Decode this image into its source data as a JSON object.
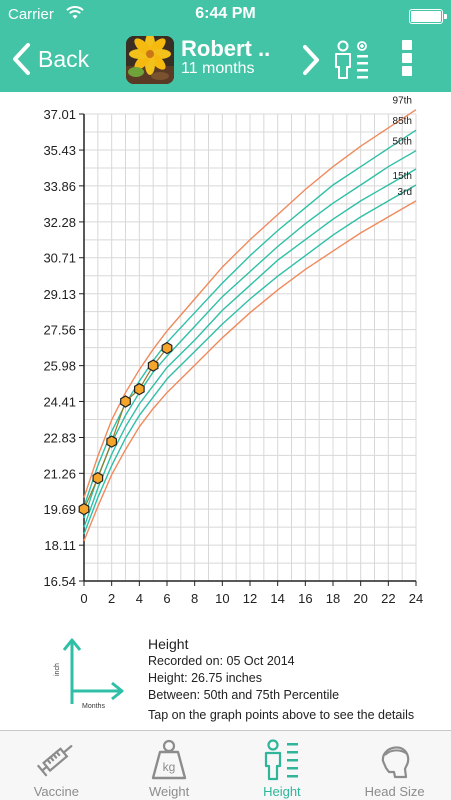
{
  "status": {
    "carrier": "Carrier",
    "time": "6:44 PM"
  },
  "nav": {
    "back_label": "Back",
    "patient_name": "Robert ..",
    "patient_age": "11 months"
  },
  "chart_data": {
    "type": "line",
    "x_ticks": [
      0,
      2,
      4,
      6,
      8,
      10,
      12,
      14,
      16,
      18,
      20,
      22,
      24
    ],
    "y_ticks": [
      "16.54",
      "18.11",
      "19.69",
      "21.26",
      "22.83",
      "24.41",
      "25.98",
      "27.56",
      "29.13",
      "30.71",
      "32.28",
      "33.86",
      "35.43",
      "37.01"
    ],
    "xlim": [
      0,
      24
    ],
    "ylim": [
      16.54,
      37.01
    ],
    "grid": true,
    "series": [
      {
        "name": "97th",
        "color": "#f08a5d",
        "x": [
          0,
          1,
          2,
          3,
          4,
          5,
          6,
          8,
          10,
          12,
          14,
          16,
          18,
          20,
          22,
          24
        ],
        "y": [
          20.2,
          22.0,
          23.6,
          24.8,
          25.8,
          26.7,
          27.5,
          28.9,
          30.3,
          31.5,
          32.6,
          33.7,
          34.7,
          35.6,
          36.4,
          37.2
        ]
      },
      {
        "name": "85th",
        "color": "#2fbfa6",
        "x": [
          0,
          1,
          2,
          3,
          4,
          5,
          6,
          8,
          10,
          12,
          14,
          16,
          18,
          20,
          22,
          24
        ],
        "y": [
          19.8,
          21.6,
          23.1,
          24.3,
          25.3,
          26.2,
          27.0,
          28.3,
          29.6,
          30.8,
          31.9,
          32.9,
          33.9,
          34.7,
          35.5,
          36.3
        ]
      },
      {
        "name": "50th",
        "color": "#2fbfa6",
        "x": [
          0,
          1,
          2,
          3,
          4,
          5,
          6,
          8,
          10,
          12,
          14,
          16,
          18,
          20,
          22,
          24
        ],
        "y": [
          19.3,
          21.1,
          22.6,
          23.8,
          24.8,
          25.7,
          26.4,
          27.7,
          29.0,
          30.1,
          31.2,
          32.2,
          33.1,
          33.9,
          34.7,
          35.4
        ]
      },
      {
        "name": "",
        "color": "#2fbfa6",
        "x": [
          0,
          1,
          2,
          3,
          4,
          5,
          6,
          8,
          10,
          12,
          14,
          16,
          18,
          20,
          22,
          24
        ],
        "y": [
          18.9,
          20.6,
          22.1,
          23.3,
          24.3,
          25.1,
          25.9,
          27.1,
          28.4,
          29.5,
          30.6,
          31.5,
          32.4,
          33.2,
          33.9,
          34.6
        ]
      },
      {
        "name": "15th",
        "color": "#2fbfa6",
        "x": [
          0,
          1,
          2,
          3,
          4,
          5,
          6,
          8,
          10,
          12,
          14,
          16,
          18,
          20,
          22,
          24
        ],
        "y": [
          18.6,
          20.2,
          21.6,
          22.8,
          23.8,
          24.6,
          25.4,
          26.6,
          27.8,
          28.9,
          29.9,
          30.8,
          31.7,
          32.5,
          33.2,
          33.9
        ]
      },
      {
        "name": "3rd",
        "color": "#f08a5d",
        "x": [
          0,
          1,
          2,
          3,
          4,
          5,
          6,
          8,
          10,
          12,
          14,
          16,
          18,
          20,
          22,
          24
        ],
        "y": [
          18.3,
          19.8,
          21.2,
          22.3,
          23.3,
          24.1,
          24.8,
          26.0,
          27.2,
          28.3,
          29.3,
          30.2,
          31.0,
          31.8,
          32.5,
          33.2
        ]
      }
    ],
    "points": {
      "color": "#f4a52a",
      "x": [
        0,
        1,
        2,
        3,
        4,
        5,
        6
      ],
      "y": [
        19.69,
        21.05,
        22.65,
        24.41,
        24.95,
        25.98,
        26.75
      ]
    }
  },
  "info": {
    "title": "Height",
    "recorded": "Recorded on: 05 Oct 2014",
    "height": "Height: 26.75 inches",
    "between": "Between: 50th and  75th Percentile",
    "hint": "Tap on the graph points above to see the details",
    "axis_y_label": "inch",
    "axis_x_label": "Months"
  },
  "tabs": [
    {
      "label": "Vaccine",
      "icon": "syringe-icon"
    },
    {
      "label": "Weight",
      "icon": "weight-icon"
    },
    {
      "label": "Height",
      "icon": "height-icon"
    },
    {
      "label": "Head Size",
      "icon": "head-icon"
    }
  ],
  "colors": {
    "accent": "#43c4a6",
    "tab_active": "#2fb59a"
  }
}
